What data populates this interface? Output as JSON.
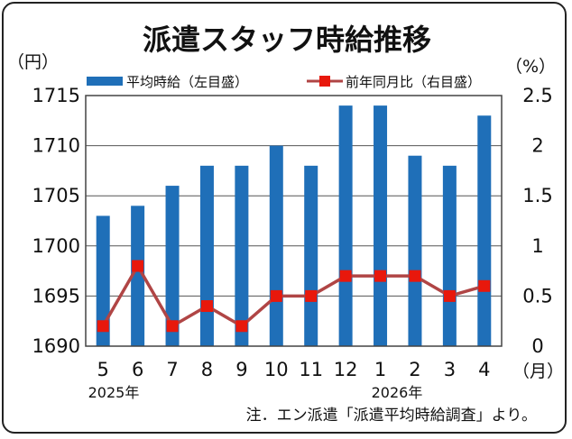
{
  "chart_data": {
    "type": "bar",
    "title": "派遣スタッフ時給推移",
    "left_unit": "（円）",
    "right_unit": "（%）",
    "x_unit": "（月）",
    "categories": [
      "5",
      "6",
      "7",
      "8",
      "9",
      "10",
      "11",
      "12",
      "1",
      "2",
      "3",
      "4"
    ],
    "year_labels": [
      "2025年",
      "2026年"
    ],
    "series": [
      {
        "name": "平均時給（左目盛）",
        "type": "bar",
        "axis": "left",
        "color": "#1f6fb8",
        "values": [
          1703,
          1704,
          1706,
          1708,
          1708,
          1710,
          1708,
          1714,
          1714,
          1709,
          1708,
          1713
        ]
      },
      {
        "name": "前年同月比（右目盛）",
        "type": "line",
        "axis": "right",
        "color": "#b04545",
        "marker_color": "#e8180c",
        "values": [
          0.2,
          0.8,
          0.2,
          0.4,
          0.2,
          0.5,
          0.5,
          0.7,
          0.7,
          0.7,
          0.5,
          0.6
        ]
      }
    ],
    "ylim_left": [
      1690,
      1715
    ],
    "yticks_left": [
      "1690",
      "1695",
      "1700",
      "1705",
      "1710",
      "1715"
    ],
    "ylim_right": [
      0,
      2.5
    ],
    "yticks_right": [
      "0",
      "0.5",
      "1",
      "1.5",
      "2",
      "2.5"
    ],
    "grid": true,
    "legend_position": "top"
  },
  "note": "注．エン派遣「派遣平均時給調査」より。"
}
